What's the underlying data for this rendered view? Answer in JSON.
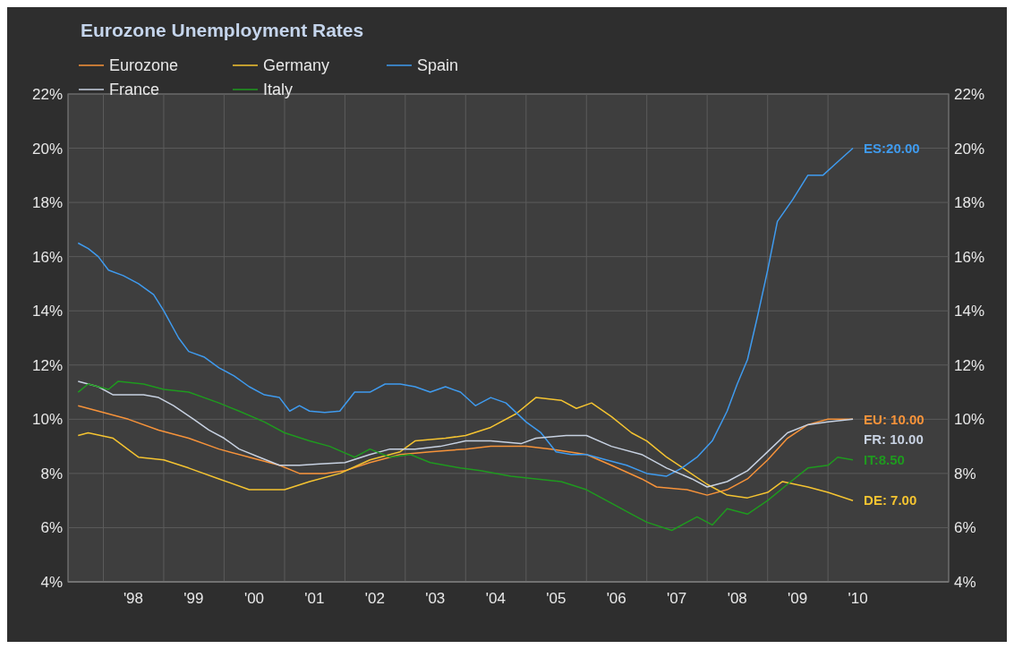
{
  "chart_data": {
    "type": "line",
    "title": "Eurozone Unemployment Rates",
    "legend": "top left",
    "grid": true,
    "xlim": [
      "1997-06",
      "2012-01"
    ],
    "xticks": [
      {
        "value": "1998",
        "label": null
      },
      {
        "value": "1999",
        "label": null
      },
      {
        "value": "2000",
        "label": null
      },
      {
        "value": "2001",
        "label": null
      },
      {
        "value": "2002",
        "label": null
      },
      {
        "value": "2003",
        "label": null
      },
      {
        "value": "2004",
        "label": null
      },
      {
        "value": "2005",
        "label": null
      },
      {
        "value": "2006",
        "label": null
      },
      {
        "value": "2007",
        "label": null
      },
      {
        "value": "2008",
        "label": null
      },
      {
        "value": "2009",
        "label": null
      },
      {
        "value": "2010",
        "label": null
      },
      {
        "value": "1998-07",
        "label": "'98"
      },
      {
        "value": "1999-07",
        "label": "'99"
      },
      {
        "value": "2000-07",
        "label": "'00"
      },
      {
        "value": "2001-07",
        "label": "'01"
      },
      {
        "value": "2002-07",
        "label": "'02"
      },
      {
        "value": "2003-07",
        "label": "'03"
      },
      {
        "value": "2004-07",
        "label": "'04"
      },
      {
        "value": "2005-07",
        "label": "'05"
      },
      {
        "value": "2006-07",
        "label": "'06"
      },
      {
        "value": "2007-07",
        "label": "'07"
      },
      {
        "value": "2008-07",
        "label": "'08"
      },
      {
        "value": "2009-07",
        "label": "'09"
      },
      {
        "value": "2010-07",
        "label": "'10"
      }
    ],
    "ylim": [
      4,
      22
    ],
    "yticks": [
      {
        "value": 4,
        "label": "4%"
      },
      {
        "value": 6,
        "label": "6%"
      },
      {
        "value": 8,
        "label": "8%"
      },
      {
        "value": 10,
        "label": "10%"
      },
      {
        "value": 12,
        "label": "12%"
      },
      {
        "value": 14,
        "label": "14%"
      },
      {
        "value": 16,
        "label": "16%"
      },
      {
        "value": 18,
        "label": "18%"
      },
      {
        "value": 20,
        "label": "20%"
      },
      {
        "value": 22,
        "label": "22%"
      }
    ],
    "y2lim": [
      4,
      22
    ],
    "y2ticks": [
      {
        "value": 4,
        "label": "4%"
      },
      {
        "value": 6,
        "label": "6%"
      },
      {
        "value": 8,
        "label": "8%"
      },
      {
        "value": 10,
        "label": "10%"
      },
      {
        "value": 12,
        "label": "12%"
      },
      {
        "value": 14,
        "label": "14%"
      },
      {
        "value": 16,
        "label": "16%"
      },
      {
        "value": 18,
        "label": "18%"
      },
      {
        "value": 20,
        "label": "20%"
      },
      {
        "value": 22,
        "label": "22%"
      }
    ],
    "series": [
      {
        "name": "Eurozone",
        "color": "#f7933a",
        "x": [
          "1997-08",
          "1997-12",
          "1998-06",
          "1998-12",
          "1999-06",
          "1999-12",
          "2000-06",
          "2000-12",
          "2001-04",
          "2001-09",
          "2002-01",
          "2002-06",
          "2002-12",
          "2003-06",
          "2004-01",
          "2004-06",
          "2005-01",
          "2005-06",
          "2006-01",
          "2006-06",
          "2006-12",
          "2007-03",
          "2007-09",
          "2008-01",
          "2008-05",
          "2008-09",
          "2009-01",
          "2009-05",
          "2009-09",
          "2010-01",
          "2010-06"
        ],
        "values": [
          10.5,
          10.3,
          10.0,
          9.6,
          9.3,
          8.9,
          8.6,
          8.3,
          8.0,
          8.0,
          8.1,
          8.4,
          8.7,
          8.8,
          8.9,
          9.0,
          9.0,
          8.9,
          8.7,
          8.3,
          7.8,
          7.5,
          7.4,
          7.2,
          7.4,
          7.8,
          8.5,
          9.3,
          9.8,
          10.0,
          10.0
        ]
      },
      {
        "name": "Germany",
        "color": "#f5c431",
        "x": [
          "1997-08",
          "1997-10",
          "1998-03",
          "1998-08",
          "1999-01",
          "1999-06",
          "1999-12",
          "2000-06",
          "2001-01",
          "2001-06",
          "2001-12",
          "2002-06",
          "2002-12",
          "2003-03",
          "2003-09",
          "2004-01",
          "2004-06",
          "2004-11",
          "2005-03",
          "2005-08",
          "2005-11",
          "2006-02",
          "2006-06",
          "2006-10",
          "2007-01",
          "2007-05",
          "2007-09",
          "2008-01",
          "2008-05",
          "2008-09",
          "2009-01",
          "2009-04",
          "2009-09",
          "2010-01",
          "2010-06"
        ],
        "values": [
          9.4,
          9.5,
          9.3,
          8.6,
          8.5,
          8.2,
          7.8,
          7.4,
          7.4,
          7.7,
          8.0,
          8.5,
          8.8,
          9.2,
          9.3,
          9.4,
          9.7,
          10.2,
          10.8,
          10.7,
          10.4,
          10.6,
          10.1,
          9.5,
          9.2,
          8.6,
          8.1,
          7.6,
          7.2,
          7.1,
          7.3,
          7.7,
          7.5,
          7.3,
          7.0
        ]
      },
      {
        "name": "Spain",
        "color": "#3f9bef",
        "x": [
          "1997-08",
          "1997-10",
          "1997-12",
          "1998-02",
          "1998-05",
          "1998-08",
          "1998-11",
          "1999-01",
          "1999-04",
          "1999-06",
          "1999-09",
          "1999-12",
          "2000-03",
          "2000-06",
          "2000-09",
          "2000-12",
          "2001-02",
          "2001-04",
          "2001-06",
          "2001-09",
          "2001-12",
          "2002-03",
          "2002-06",
          "2002-09",
          "2002-12",
          "2003-03",
          "2003-06",
          "2003-09",
          "2003-12",
          "2004-03",
          "2004-06",
          "2004-09",
          "2005-01",
          "2005-04",
          "2005-07",
          "2005-10",
          "2006-01",
          "2006-05",
          "2006-09",
          "2007-01",
          "2007-05",
          "2007-08",
          "2007-11",
          "2008-02",
          "2008-05",
          "2008-07",
          "2008-09",
          "2008-11",
          "2009-01",
          "2009-03",
          "2009-06",
          "2009-09",
          "2009-12",
          "2010-03",
          "2010-06"
        ],
        "values": [
          16.5,
          16.3,
          16.0,
          15.5,
          15.3,
          15.0,
          14.6,
          14.0,
          13.0,
          12.5,
          12.3,
          11.9,
          11.6,
          11.2,
          10.9,
          10.8,
          10.3,
          10.5,
          10.3,
          10.25,
          10.3,
          11.0,
          11.0,
          11.3,
          11.3,
          11.2,
          11.0,
          11.2,
          11.0,
          10.5,
          10.8,
          10.6,
          9.9,
          9.5,
          8.8,
          8.7,
          8.7,
          8.5,
          8.3,
          8.0,
          7.9,
          8.2,
          8.6,
          9.2,
          10.3,
          11.3,
          12.2,
          13.8,
          15.5,
          17.3,
          18.1,
          19.0,
          19.0,
          19.5,
          20.0
        ]
      },
      {
        "name": "France",
        "color": "#c8d2e2",
        "x": [
          "1997-08",
          "1997-12",
          "1998-03",
          "1998-09",
          "1998-12",
          "1999-03",
          "1999-07",
          "1999-10",
          "2000-01",
          "2000-04",
          "2000-08",
          "2000-12",
          "2001-04",
          "2001-08",
          "2002-01",
          "2002-06",
          "2002-10",
          "2003-03",
          "2003-08",
          "2004-01",
          "2004-06",
          "2004-12",
          "2005-03",
          "2005-09",
          "2006-01",
          "2006-06",
          "2006-12",
          "2007-05",
          "2007-10",
          "2008-01",
          "2008-05",
          "2008-09",
          "2009-01",
          "2009-05",
          "2009-09",
          "2010-01",
          "2010-06"
        ],
        "values": [
          11.4,
          11.2,
          10.9,
          10.9,
          10.8,
          10.5,
          10.0,
          9.6,
          9.3,
          8.9,
          8.6,
          8.3,
          8.3,
          8.35,
          8.4,
          8.7,
          8.9,
          8.9,
          9.0,
          9.2,
          9.2,
          9.1,
          9.3,
          9.4,
          9.4,
          9.0,
          8.7,
          8.2,
          7.8,
          7.5,
          7.7,
          8.1,
          8.8,
          9.5,
          9.8,
          9.9,
          10.0
        ]
      },
      {
        "name": "Italy",
        "color": "#1f9a1f",
        "x": [
          "1997-08",
          "1997-10",
          "1998-02",
          "1998-04",
          "1998-09",
          "1999-01",
          "1999-06",
          "1999-12",
          "2000-04",
          "2000-09",
          "2001-01",
          "2001-06",
          "2001-10",
          "2002-03",
          "2002-06",
          "2002-10",
          "2003-02",
          "2003-06",
          "2003-12",
          "2004-04",
          "2004-10",
          "2005-03",
          "2005-08",
          "2006-01",
          "2006-06",
          "2006-10",
          "2007-01",
          "2007-06",
          "2007-09",
          "2007-11",
          "2008-02",
          "2008-05",
          "2008-09",
          "2009-01",
          "2009-05",
          "2009-09",
          "2010-01",
          "2010-03",
          "2010-06"
        ],
        "values": [
          11.0,
          11.3,
          11.1,
          11.4,
          11.3,
          11.1,
          11.0,
          10.6,
          10.3,
          9.9,
          9.5,
          9.2,
          9.0,
          8.6,
          8.9,
          8.6,
          8.7,
          8.4,
          8.2,
          8.1,
          7.9,
          7.8,
          7.7,
          7.4,
          6.9,
          6.5,
          6.2,
          5.9,
          6.2,
          6.4,
          6.1,
          6.7,
          6.5,
          7.0,
          7.6,
          8.2,
          8.3,
          8.6,
          8.5
        ]
      }
    ],
    "annotations": [
      {
        "text": "EU: 10.00",
        "x": "2010-06",
        "y": 10.0
      },
      {
        "text": "DE: 7.00",
        "x": "2010-06",
        "y": 7.0
      },
      {
        "text": "ES:20.00",
        "x": "2010-06",
        "y": 20.0
      },
      {
        "text": "FR: 10.00",
        "x": "2010-06",
        "y": 10.0
      },
      {
        "text": "IT:8.50",
        "x": "2010-06",
        "y": 8.5
      }
    ]
  }
}
